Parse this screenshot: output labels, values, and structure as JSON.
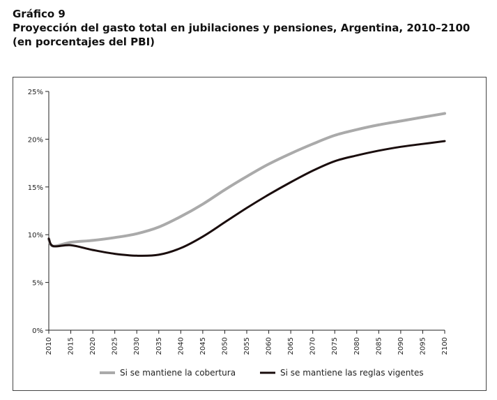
{
  "header": {
    "label": "Gráfico 9",
    "title": "Proyección del gasto total en jubilaciones y pensiones, Argentina, 2010–2100",
    "subtitle": "(en porcentajes del PBI)"
  },
  "colors": {
    "series_cobertura": "#aaaaaa",
    "series_reglas": "#1a0d0d",
    "axis": "#222222"
  },
  "chart_data": {
    "type": "line",
    "title": "Proyección del gasto total en jubilaciones y pensiones, Argentina, 2010–2100",
    "subtitle": "(en porcentajes del PBI)",
    "xlabel": "",
    "ylabel": "",
    "xlim": [
      2010,
      2100
    ],
    "ylim": [
      0,
      25
    ],
    "x_ticks": [
      "2010",
      "2015",
      "2020",
      "2025",
      "2030",
      "2035",
      "2040",
      "2045",
      "2050",
      "2055",
      "2060",
      "2065",
      "2070",
      "2075",
      "2080",
      "2085",
      "2090",
      "2095",
      "2100"
    ],
    "y_ticks": [
      "0%",
      "5%",
      "10%",
      "15%",
      "20%",
      "25%"
    ],
    "grid": false,
    "legend_position": "bottom",
    "x": [
      2010,
      2011,
      2015,
      2020,
      2025,
      2030,
      2035,
      2040,
      2045,
      2050,
      2055,
      2060,
      2065,
      2070,
      2075,
      2080,
      2085,
      2090,
      2095,
      2100
    ],
    "series": [
      {
        "name": "Si se mantiene la cobertura",
        "values": [
          9.5,
          8.8,
          9.2,
          9.4,
          9.7,
          10.1,
          10.8,
          11.9,
          13.2,
          14.7,
          16.1,
          17.4,
          18.5,
          19.5,
          20.4,
          21.0,
          21.5,
          21.9,
          22.3,
          22.7
        ]
      },
      {
        "name": "Si se mantiene las reglas vigentes",
        "values": [
          9.6,
          8.8,
          8.9,
          8.4,
          8.0,
          7.8,
          7.9,
          8.6,
          9.8,
          11.3,
          12.8,
          14.2,
          15.5,
          16.7,
          17.7,
          18.3,
          18.8,
          19.2,
          19.5,
          19.8
        ]
      }
    ]
  }
}
